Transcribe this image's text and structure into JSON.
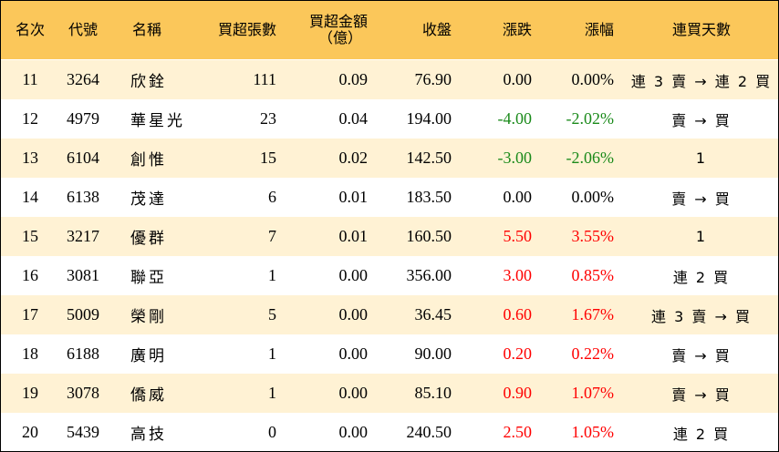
{
  "header": {
    "rank": "名次",
    "code": "代號",
    "name": "名稱",
    "lots": "買超張數",
    "amount_line1": "買超金額",
    "amount_line2": "（億）",
    "close": "收盤",
    "change": "漲跌",
    "pct": "漲幅",
    "days": "連買天數"
  },
  "colors": {
    "header_bg": "#fbc75a",
    "stripe_bg": "#fff2d4",
    "up": "#ff0000",
    "down": "#1a8a1a"
  },
  "rows": [
    {
      "rank": "11",
      "code": "3264",
      "name": "欣銓",
      "lots": "111",
      "amount": "0.09",
      "close": "76.90",
      "change": "0.00",
      "pct": "0.00%",
      "days": "連 3 賣 → 連 2 買",
      "dir": "zero"
    },
    {
      "rank": "12",
      "code": "4979",
      "name": "華星光",
      "lots": "23",
      "amount": "0.04",
      "close": "194.00",
      "change": "-4.00",
      "pct": "-2.02%",
      "days": "賣 → 買",
      "dir": "neg"
    },
    {
      "rank": "13",
      "code": "6104",
      "name": "創惟",
      "lots": "15",
      "amount": "0.02",
      "close": "142.50",
      "change": "-3.00",
      "pct": "-2.06%",
      "days": "1",
      "dir": "neg"
    },
    {
      "rank": "14",
      "code": "6138",
      "name": "茂達",
      "lots": "6",
      "amount": "0.01",
      "close": "183.50",
      "change": "0.00",
      "pct": "0.00%",
      "days": "賣 → 買",
      "dir": "zero"
    },
    {
      "rank": "15",
      "code": "3217",
      "name": "優群",
      "lots": "7",
      "amount": "0.01",
      "close": "160.50",
      "change": "5.50",
      "pct": "3.55%",
      "days": "1",
      "dir": "pos"
    },
    {
      "rank": "16",
      "code": "3081",
      "name": "聯亞",
      "lots": "1",
      "amount": "0.00",
      "close": "356.00",
      "change": "3.00",
      "pct": "0.85%",
      "days": "連 2 買",
      "dir": "pos"
    },
    {
      "rank": "17",
      "code": "5009",
      "name": "榮剛",
      "lots": "5",
      "amount": "0.00",
      "close": "36.45",
      "change": "0.60",
      "pct": "1.67%",
      "days": "連 3 賣 → 買",
      "dir": "pos"
    },
    {
      "rank": "18",
      "code": "6188",
      "name": "廣明",
      "lots": "1",
      "amount": "0.00",
      "close": "90.00",
      "change": "0.20",
      "pct": "0.22%",
      "days": "賣 → 買",
      "dir": "pos"
    },
    {
      "rank": "19",
      "code": "3078",
      "name": "僑威",
      "lots": "1",
      "amount": "0.00",
      "close": "85.10",
      "change": "0.90",
      "pct": "1.07%",
      "days": "賣 → 買",
      "dir": "pos"
    },
    {
      "rank": "20",
      "code": "5439",
      "name": "高技",
      "lots": "0",
      "amount": "0.00",
      "close": "240.50",
      "change": "2.50",
      "pct": "1.05%",
      "days": "連 2 買",
      "dir": "pos"
    }
  ]
}
